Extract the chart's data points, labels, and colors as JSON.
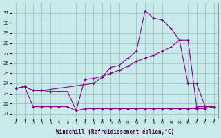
{
  "xlabel": "Windchill (Refroidissement éolien,°C)",
  "bg_color": "#c8eaea",
  "grid_color": "#9bbcbc",
  "line_color": "#880088",
  "x_ticks": [
    0,
    1,
    2,
    3,
    4,
    5,
    6,
    7,
    8,
    9,
    10,
    11,
    12,
    13,
    14,
    15,
    16,
    17,
    18,
    19,
    20,
    21,
    22,
    23
  ],
  "y_ticks": [
    21,
    22,
    23,
    24,
    25,
    26,
    27,
    28,
    29,
    30,
    31
  ],
  "ylim": [
    20.5,
    32.0
  ],
  "xlim": [
    -0.5,
    23.5
  ],
  "line1_x": [
    0,
    1,
    2,
    3,
    4,
    5,
    6,
    7,
    8,
    9,
    10,
    11,
    12,
    13,
    14,
    15,
    16,
    17,
    18,
    19,
    20,
    21,
    22,
    23
  ],
  "line1_y": [
    23.5,
    23.7,
    21.7,
    21.7,
    21.7,
    21.7,
    21.7,
    21.3,
    21.5,
    21.5,
    21.5,
    21.5,
    21.5,
    21.5,
    21.5,
    21.5,
    21.5,
    21.5,
    21.5,
    21.5,
    21.5,
    21.5,
    21.5,
    21.7
  ],
  "line2_x": [
    0,
    1,
    2,
    3,
    4,
    5,
    6,
    7,
    8,
    9,
    10,
    11,
    12,
    13,
    14,
    15,
    16,
    17,
    18,
    19,
    20,
    21,
    22,
    23
  ],
  "line2_y": [
    23.5,
    23.7,
    23.3,
    23.3,
    23.2,
    23.2,
    23.2,
    21.3,
    24.4,
    24.5,
    24.7,
    25.0,
    25.3,
    25.7,
    26.2,
    26.5,
    26.8,
    27.2,
    27.6,
    28.3,
    24.0,
    24.0,
    21.7,
    21.7
  ],
  "line3_x": [
    0,
    1,
    2,
    3,
    9,
    10,
    11,
    12,
    13,
    14,
    15,
    16,
    17,
    18,
    19,
    20,
    21,
    22,
    23
  ],
  "line3_y": [
    23.5,
    23.7,
    23.3,
    23.3,
    24.0,
    24.6,
    25.6,
    25.8,
    26.5,
    27.2,
    31.2,
    30.5,
    30.3,
    29.5,
    28.3,
    28.3,
    21.7,
    21.7,
    21.7
  ]
}
